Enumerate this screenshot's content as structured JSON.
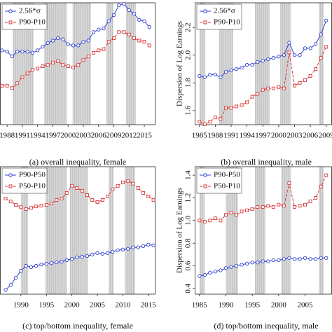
{
  "chart_data": [
    {
      "type": "line",
      "caption": "(a) overall inequality, female",
      "x": [
        1987,
        1988,
        1989,
        1990,
        1991,
        1992,
        1993,
        1994,
        1995,
        1996,
        1997,
        1998,
        1999,
        2000,
        2001,
        2002,
        2003,
        2004,
        2005,
        2006,
        2007,
        2008,
        2009,
        2010,
        2011,
        2012,
        2013,
        2014,
        2015,
        2016
      ],
      "series": [
        {
          "name": "2.56*σ",
          "color": "#2f3fd0",
          "marker": "circle",
          "dashed": false,
          "values": [
            2.01,
            2.0,
            1.96,
            2.0,
            2.0,
            2.0,
            1.99,
            2.01,
            2.04,
            2.07,
            2.09,
            2.11,
            2.1,
            2.06,
            2.05,
            2.05,
            2.08,
            2.09,
            2.16,
            2.18,
            2.19,
            2.25,
            2.3,
            2.38,
            2.39,
            2.34,
            2.31,
            2.26,
            2.25,
            2.2
          ]
        },
        {
          "name": "P90-P10",
          "color": "#d83a3a",
          "marker": "square",
          "dashed": true,
          "values": [
            1.72,
            1.72,
            1.7,
            1.74,
            1.79,
            1.82,
            1.85,
            1.86,
            1.88,
            1.89,
            1.91,
            1.92,
            1.89,
            1.88,
            1.87,
            1.89,
            1.93,
            1.96,
            1.99,
            2.01,
            2.02,
            2.08,
            2.11,
            2.16,
            2.16,
            2.14,
            2.11,
            2.09,
            2.08,
            2.05
          ]
        }
      ],
      "xlim": [
        1986.6,
        2017.2
      ],
      "ylim": [
        1.4,
        2.4
      ],
      "xticks": [
        1988,
        1991,
        1994,
        1997,
        2000,
        2003,
        2006,
        2009,
        2012,
        2015
      ],
      "shaded": [
        [
          1989.1,
          1993.2
        ],
        [
          1995.3,
          1999.7
        ],
        [
          2000.9,
          2004.5
        ],
        [
          2007.5,
          2008.9
        ],
        [
          2011.4,
          2013.3
        ]
      ],
      "legend": "upper left"
    },
    {
      "type": "line",
      "caption": "(b) overall inequality, male",
      "ylabel": "Dispersion of Log Earnings",
      "x": [
        1985,
        1986,
        1987,
        1988,
        1989,
        1990,
        1991,
        1992,
        1993,
        1994,
        1995,
        1996,
        1997,
        1998,
        1999,
        2000,
        2001,
        2002,
        2003,
        2004,
        2005,
        2006,
        2007,
        2008,
        2009
      ],
      "series": [
        {
          "name": "2.56*σ",
          "color": "#2f3fd0",
          "marker": "circle",
          "dashed": false,
          "values": [
            1.85,
            1.84,
            1.86,
            1.86,
            1.84,
            1.88,
            1.89,
            1.9,
            1.91,
            1.93,
            1.93,
            1.95,
            1.96,
            1.97,
            1.98,
            1.99,
            2.0,
            2.09,
            2.0,
            2.0,
            2.05,
            2.05,
            2.08,
            2.15,
            2.25
          ]
        },
        {
          "name": "P90-P10",
          "color": "#d83a3a",
          "marker": "square",
          "dashed": true,
          "values": [
            1.52,
            1.5,
            1.52,
            1.55,
            1.54,
            1.62,
            1.62,
            1.63,
            1.64,
            1.66,
            1.7,
            1.72,
            1.75,
            1.76,
            1.76,
            1.77,
            1.76,
            2.02,
            1.78,
            1.8,
            1.82,
            1.85,
            1.9,
            1.98,
            2.06
          ]
        }
      ],
      "xlim": [
        1984.1,
        2010.1
      ],
      "ylim": [
        1.498,
        2.378
      ],
      "xticks": [
        1985,
        1988,
        1991,
        1994,
        1997,
        2000,
        2003,
        2006,
        2009
      ],
      "yticks": [
        1.6,
        1.8,
        {
          "value": 2.0,
          "label": "2.0"
        },
        2.2
      ],
      "shaded": [
        [
          1985.0,
          1986.1
        ],
        [
          1988.7,
          1991.4
        ],
        [
          1995.5,
          1998.3
        ],
        [
          2000.3,
          2002.3
        ],
        [
          2007.6,
          2008.5
        ]
      ],
      "legend": "upper left"
    },
    {
      "type": "line",
      "caption": "(c) top/bottom inequality, female",
      "x": [
        1987,
        1988,
        1989,
        1990,
        1991,
        1992,
        1993,
        1994,
        1995,
        1996,
        1997,
        1998,
        1999,
        2000,
        2001,
        2002,
        2003,
        2004,
        2005,
        2006,
        2007,
        2008,
        2009,
        2010,
        2011,
        2012,
        2013,
        2014,
        2015,
        2016
      ],
      "series": [
        {
          "name": "P90-P50",
          "color": "#2f3fd0",
          "marker": "circle",
          "dashed": false,
          "values": [
            0.323,
            0.351,
            0.39,
            0.428,
            0.456,
            0.448,
            0.456,
            0.463,
            0.467,
            0.471,
            0.475,
            0.479,
            0.487,
            0.494,
            0.502,
            0.506,
            0.51,
            0.518,
            0.526,
            0.522,
            0.526,
            0.533,
            0.541,
            0.545,
            0.549,
            0.557,
            0.557,
            0.564,
            0.572,
            0.568
          ]
        },
        {
          "name": "P50-P10",
          "color": "#d83a3a",
          "marker": "square",
          "dashed": true,
          "values": [
            0.825,
            0.809,
            0.79,
            0.778,
            0.767,
            0.774,
            0.782,
            0.786,
            0.79,
            0.798,
            0.817,
            0.825,
            0.856,
            0.895,
            0.883,
            0.868,
            0.844,
            0.817,
            0.806,
            0.817,
            0.837,
            0.876,
            0.895,
            0.914,
            0.922,
            0.907,
            0.883,
            0.856,
            0.837,
            0.817
          ]
        }
      ],
      "xlim": [
        1985.9,
        2016.4
      ],
      "ylim": [
        0.3,
        1.0
      ],
      "xticks": [
        1990,
        1995,
        2000,
        2005,
        2010,
        2015
      ],
      "shaded": [
        [
          1990.0,
          1991.4
        ],
        [
          1994.8,
          1999.0
        ],
        [
          1999.6,
          2003.1
        ],
        [
          2007.2,
          2008.2
        ],
        [
          2010.4,
          2012.4
        ]
      ],
      "legend": "upper left"
    },
    {
      "type": "line",
      "caption": "(d) top/bottom inequality, male",
      "ylabel": "Dispersion of Log Earnings",
      "x": [
        1985,
        1986,
        1987,
        1988,
        1989,
        1990,
        1991,
        1992,
        1993,
        1994,
        1995,
        1996,
        1997,
        1998,
        1999,
        2000,
        2001,
        2002,
        2003,
        2004,
        2005,
        2006,
        2007,
        2008,
        2009
      ],
      "series": [
        {
          "name": "P90-P50",
          "color": "#2f3fd0",
          "marker": "circle",
          "dashed": false,
          "values": [
            0.51,
            0.52,
            0.54,
            0.55,
            0.56,
            0.58,
            0.59,
            0.6,
            0.61,
            0.62,
            0.63,
            0.63,
            0.64,
            0.64,
            0.65,
            0.65,
            0.66,
            0.67,
            0.66,
            0.66,
            0.67,
            0.66,
            0.66,
            0.67,
            0.67
          ]
        },
        {
          "name": "P50-P10",
          "color": "#d83a3a",
          "marker": "square",
          "dashed": true,
          "values": [
            1.0,
            0.99,
            1.0,
            1.02,
            1.0,
            1.05,
            1.07,
            1.05,
            1.08,
            1.09,
            1.1,
            1.12,
            1.12,
            1.13,
            1.12,
            1.14,
            1.13,
            1.33,
            1.12,
            1.13,
            1.14,
            1.17,
            1.2,
            1.3,
            1.4
          ]
        }
      ],
      "xlim": [
        1984.1,
        2010.1
      ],
      "ylim": [
        0.35,
        1.475
      ],
      "xticks": [
        1985,
        1990,
        1995,
        2000,
        2005
      ],
      "yticks": [
        0.4,
        0.6,
        0.8,
        {
          "value": 1.0,
          "label": "1.0"
        },
        1.2,
        1.4
      ],
      "shaded": [
        [
          1985.0,
          1986.0
        ],
        [
          1990.0,
          1992.3
        ],
        [
          1995.5,
          1997.5
        ],
        [
          2000.5,
          2002.3
        ],
        [
          2007.6,
          2008.5
        ]
      ],
      "legend": "upper left"
    }
  ]
}
